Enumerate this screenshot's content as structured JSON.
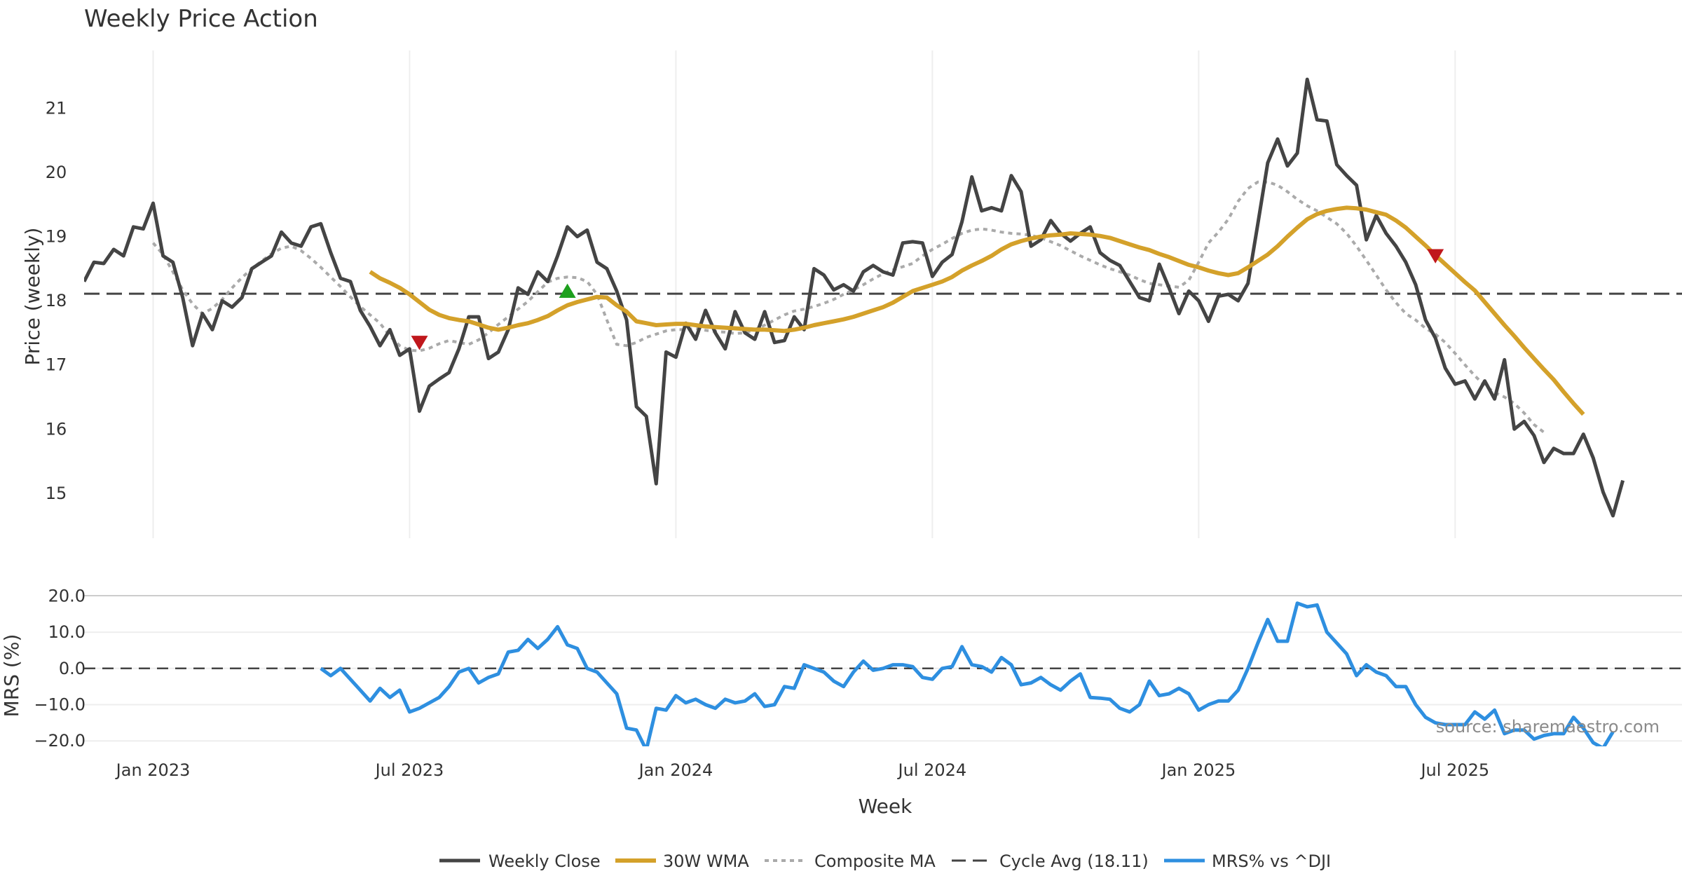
{
  "chart_data": {
    "type": "line",
    "title": "Weekly Price Action",
    "xlabel": "Week",
    "x_ticks": [
      "Jan 2023",
      "Jul 2023",
      "Jan 2024",
      "Jul 2024",
      "Jan 2025",
      "Jul 2025"
    ],
    "x_tick_weeks": [
      7,
      33,
      60,
      86,
      113,
      139
    ],
    "x_range": [
      0,
      162
    ],
    "legend": {
      "placement": "bottom-center",
      "entries": [
        "Weekly Close",
        "30W WMA",
        "Composite MA",
        "Cycle Avg (18.11)",
        "MRS% vs ^DJI"
      ]
    },
    "source_note": "source: sharemaestro.com",
    "colors": {
      "close": "#444444",
      "wma": "#d4a12a",
      "composite": "#aaaaaa",
      "cycle": "#444444",
      "mrs": "#2e8fe0",
      "sell_marker": "#c0171c",
      "buy_marker": "#1ea01e",
      "grid": "#eeeeee"
    },
    "price_panel": {
      "ylabel": "Price (weekly)",
      "ylim": [
        14.3,
        21.9
      ],
      "yticks": [
        15,
        16,
        17,
        18,
        19,
        20,
        21
      ],
      "grid": "vertical",
      "cycle_avg": 18.11,
      "start_week": 0,
      "close": [
        18.3,
        18.6,
        18.58,
        18.8,
        18.7,
        19.15,
        19.12,
        19.52,
        18.7,
        18.6,
        18.05,
        17.3,
        17.8,
        17.55,
        18.0,
        17.9,
        18.05,
        18.5,
        18.6,
        18.7,
        19.07,
        18.9,
        18.85,
        19.15,
        19.2,
        18.75,
        18.35,
        18.3,
        17.85,
        17.6,
        17.3,
        17.55,
        17.15,
        17.25,
        16.28,
        16.67,
        16.78,
        16.88,
        17.25,
        17.75,
        17.75,
        17.1,
        17.2,
        17.55,
        18.2,
        18.1,
        18.45,
        18.3,
        18.7,
        19.15,
        19.0,
        19.1,
        18.6,
        18.5,
        18.15,
        17.7,
        16.35,
        16.2,
        15.15,
        17.2,
        17.12,
        17.65,
        17.4,
        17.85,
        17.5,
        17.25,
        17.83,
        17.5,
        17.4,
        17.83,
        17.35,
        17.38,
        17.75,
        17.55,
        18.5,
        18.4,
        18.17,
        18.25,
        18.15,
        18.45,
        18.55,
        18.45,
        18.4,
        18.9,
        18.92,
        18.9,
        18.38,
        18.6,
        18.72,
        19.23,
        19.93,
        19.4,
        19.45,
        19.4,
        19.95,
        19.7,
        18.85,
        18.95,
        19.25,
        19.05,
        18.93,
        19.05,
        19.15,
        18.75,
        18.63,
        18.55,
        18.3,
        18.05,
        18.0,
        18.57,
        18.2,
        17.8,
        18.15,
        18.0,
        17.68,
        18.07,
        18.1,
        18.0,
        18.27,
        19.2,
        20.15,
        20.52,
        20.1,
        20.3,
        21.45,
        20.82,
        20.8,
        20.12,
        19.95,
        19.8,
        18.95,
        19.33,
        19.05,
        18.85,
        18.6,
        18.25,
        17.7,
        17.42,
        16.95,
        16.7,
        16.75,
        16.47,
        16.75,
        16.47,
        17.08,
        16.0,
        16.12,
        15.9,
        15.48,
        15.7,
        15.62,
        15.62,
        15.92,
        15.55,
        15.02,
        14.65,
        15.2
      ],
      "wma_start_week": 29,
      "wma": [
        18.45,
        18.35,
        18.28,
        18.2,
        18.1,
        17.98,
        17.86,
        17.78,
        17.73,
        17.7,
        17.68,
        17.63,
        17.58,
        17.55,
        17.58,
        17.62,
        17.65,
        17.7,
        17.76,
        17.85,
        17.93,
        17.98,
        18.02,
        18.06,
        18.05,
        17.93,
        17.83,
        17.68,
        17.65,
        17.62,
        17.63,
        17.64,
        17.64,
        17.62,
        17.6,
        17.59,
        17.58,
        17.57,
        17.56,
        17.55,
        17.55,
        17.54,
        17.53,
        17.55,
        17.58,
        17.62,
        17.65,
        17.68,
        17.71,
        17.75,
        17.8,
        17.85,
        17.9,
        17.97,
        18.06,
        18.15,
        18.2,
        18.25,
        18.3,
        18.37,
        18.47,
        18.55,
        18.62,
        18.7,
        18.8,
        18.88,
        18.93,
        18.97,
        19.0,
        19.02,
        19.03,
        19.05,
        19.04,
        19.03,
        19.01,
        18.98,
        18.93,
        18.88,
        18.83,
        18.79,
        18.73,
        18.68,
        18.62,
        18.56,
        18.52,
        18.47,
        18.43,
        18.4,
        18.43,
        18.52,
        18.62,
        18.72,
        18.85,
        19.0,
        19.14,
        19.27,
        19.35,
        19.4,
        19.43,
        19.45,
        19.44,
        19.42,
        19.38,
        19.34,
        19.25,
        19.14,
        19.0,
        18.86,
        18.71,
        18.57,
        18.43,
        18.29,
        18.16,
        17.98,
        17.8,
        17.62,
        17.45,
        17.27,
        17.1,
        16.93,
        16.77,
        16.58,
        16.4,
        16.23
      ]
    },
    "composite_ma": [
      18.9,
      18.72,
      18.45,
      18.17,
      17.95,
      17.8,
      17.88,
      18.02,
      18.2,
      18.36,
      18.5,
      18.62,
      18.73,
      18.82,
      18.85,
      18.78,
      18.66,
      18.52,
      18.37,
      18.22,
      18.06,
      17.91,
      17.78,
      17.65,
      17.45,
      17.3,
      17.23,
      17.22,
      17.26,
      17.33,
      17.38,
      17.35,
      17.32,
      17.39,
      17.5,
      17.63,
      17.75,
      17.87,
      17.99,
      18.14,
      18.29,
      18.35,
      18.37,
      18.36,
      18.3,
      18.1,
      17.7,
      17.32,
      17.3,
      17.35,
      17.43,
      17.48,
      17.53,
      17.55,
      17.55,
      17.57,
      17.54,
      17.52,
      17.51,
      17.49,
      17.5,
      17.55,
      17.62,
      17.7,
      17.78,
      17.84,
      17.87,
      17.91,
      17.96,
      18.02,
      18.1,
      18.17,
      18.25,
      18.34,
      18.42,
      18.48,
      18.53,
      18.58,
      18.7,
      18.8,
      18.88,
      18.97,
      19.05,
      19.1,
      19.12,
      19.1,
      19.07,
      19.05,
      19.04,
      19.02,
      18.98,
      18.92,
      18.86,
      18.78,
      18.7,
      18.63,
      18.56,
      18.5,
      18.45,
      18.4,
      18.33,
      18.27,
      18.25,
      18.23,
      18.21,
      18.32,
      18.6,
      18.9,
      19.07,
      19.27,
      19.55,
      19.75,
      19.85,
      19.85,
      19.8,
      19.7,
      19.58,
      19.48,
      19.4,
      19.3,
      19.2,
      19.05,
      18.85,
      18.63,
      18.4,
      18.17,
      17.97,
      17.8,
      17.7,
      17.57,
      17.48,
      17.35,
      17.18,
      17.0,
      16.83,
      16.68,
      16.57,
      16.5,
      16.4,
      16.25,
      16.07,
      15.95
    ],
    "composite_start_week": 7,
    "markers": [
      {
        "type": "sell",
        "week": 34,
        "value": 17.35
      },
      {
        "type": "buy",
        "week": 49,
        "value": 18.15
      },
      {
        "type": "sell",
        "week": 137,
        "value": 18.7
      }
    ],
    "mrs_panel": {
      "ylabel": "MRS (%)",
      "ylim": [
        -21.5,
        22
      ],
      "yticks": [
        20.0,
        10.0,
        0.0,
        -10.0,
        -20.0
      ],
      "ytick_labels": [
        "20.0",
        "10.0",
        "0.0",
        "−10.0",
        "−20.0"
      ],
      "zero_line": 0,
      "start_week": 24,
      "values": [
        0,
        -2,
        0,
        -3,
        -6,
        -9,
        -5.5,
        -8,
        -6,
        -12,
        -11,
        -9.5,
        -8,
        -5,
        -1,
        0,
        -4,
        -2.5,
        -1.5,
        4.5,
        5,
        8,
        5.5,
        8,
        11.5,
        6.5,
        5.5,
        0,
        -1,
        -4,
        -7,
        -16.5,
        -17,
        -22.5,
        -11,
        -11.5,
        -7.5,
        -9.5,
        -8.5,
        -10,
        -11,
        -8.5,
        -9.5,
        -9,
        -7,
        -10.5,
        -10,
        -5,
        -5.5,
        1,
        0,
        -1,
        -3.5,
        -5,
        -1,
        2,
        -0.5,
        0,
        1,
        1,
        0.5,
        -2.5,
        -3,
        0,
        0.5,
        6,
        1,
        0.5,
        -1,
        3,
        1,
        -4.5,
        -4,
        -2.5,
        -4.5,
        -6,
        -3.5,
        -1.5,
        -8,
        -8.2,
        -8.5,
        -11,
        -12,
        -10,
        -3.5,
        -7.5,
        -7,
        -5.5,
        -7,
        -11.5,
        -10,
        -9,
        -9,
        -6,
        0,
        7,
        13.5,
        7.5,
        7.5,
        18,
        17,
        17.5,
        10,
        7,
        4,
        -2,
        1,
        -1,
        -2,
        -5,
        -5,
        -10,
        -13.5,
        -15,
        -15.5,
        -15.5,
        -15.5,
        -12,
        -14,
        -11.5,
        -18,
        -17,
        -17,
        -19.5,
        -18.5,
        -18,
        -18,
        -13.5,
        -16.5,
        -20.5,
        -22,
        -17.5
      ]
    }
  }
}
